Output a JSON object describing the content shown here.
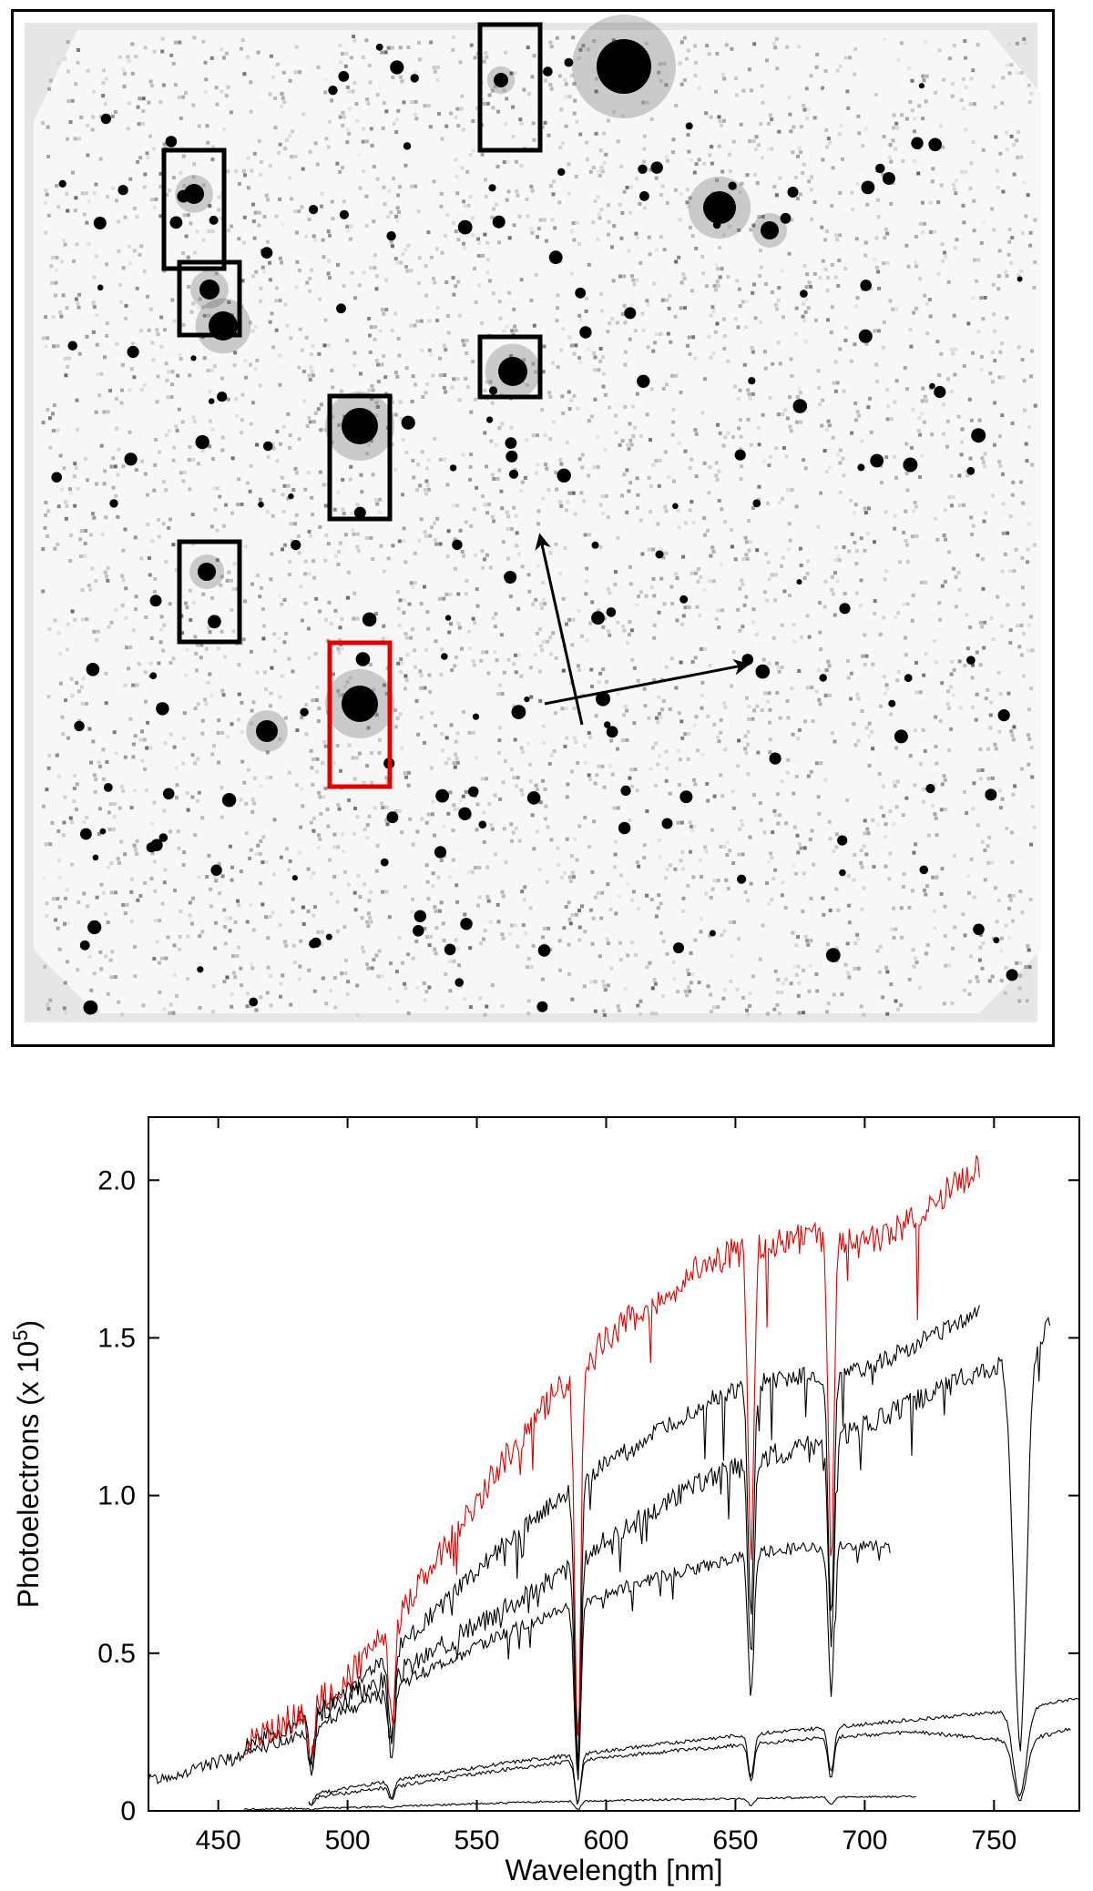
{
  "image_panel": {
    "colors": {
      "background": "#ffffff",
      "field": "#f7f7f7",
      "vignette": "#e6e6e6",
      "star": "#000000",
      "highlight_box": "#e00000",
      "box": "#000000"
    },
    "slit_boxes": [
      {
        "id": "slit-1",
        "highlight": false
      },
      {
        "id": "slit-2",
        "highlight": false
      },
      {
        "id": "slit-3",
        "highlight": false
      },
      {
        "id": "slit-4",
        "highlight": false
      },
      {
        "id": "slit-5",
        "highlight": false
      },
      {
        "id": "slit-6",
        "highlight": false
      },
      {
        "id": "slit-7",
        "highlight": true
      }
    ],
    "arrows": [
      "north-arrow",
      "east-arrow"
    ]
  },
  "chart_data": {
    "type": "line",
    "title": "",
    "xlabel": "Wavelength [nm]",
    "ylabel_prefix": "Photoelectrons (x 10",
    "ylabel_exp": "5",
    "ylabel_suffix": ")",
    "xlim": [
      423,
      783
    ],
    "ylim": [
      0,
      2.2
    ],
    "x_ticks": [
      450,
      500,
      550,
      600,
      650,
      700,
      750
    ],
    "x_tick_labels": [
      "450",
      "500",
      "550",
      "600",
      "650",
      "700",
      "750"
    ],
    "y_ticks": [
      0,
      0.5,
      1.0,
      1.5,
      2.0
    ],
    "y_tick_labels": [
      "0",
      "0.5",
      "1.0",
      "1.5",
      "2.0"
    ],
    "grid": false,
    "absorption_lines_nm": [
      486,
      517,
      589,
      656,
      687,
      760
    ],
    "series": [
      {
        "color": "#e00000",
        "noise": 0.05,
        "x": [
          460,
          480,
          500,
          520,
          540,
          560,
          580,
          600,
          620,
          640,
          660,
          680,
          700,
          720,
          740,
          745
        ],
        "y": [
          0.22,
          0.3,
          0.42,
          0.62,
          0.86,
          1.1,
          1.32,
          1.5,
          1.62,
          1.74,
          1.8,
          1.82,
          1.8,
          1.88,
          2.02,
          2.05
        ]
      },
      {
        "color": "#000000",
        "noise": 0.03,
        "x": [
          460,
          480,
          500,
          520,
          540,
          560,
          580,
          600,
          620,
          640,
          660,
          680,
          700,
          720,
          740,
          745
        ],
        "y": [
          0.2,
          0.28,
          0.38,
          0.52,
          0.68,
          0.84,
          0.98,
          1.1,
          1.2,
          1.3,
          1.36,
          1.38,
          1.4,
          1.48,
          1.57,
          1.6
        ]
      },
      {
        "color": "#000000",
        "noise": 0.035,
        "x": [
          480,
          500,
          520,
          540,
          560,
          580,
          600,
          620,
          640,
          660,
          680,
          700,
          720,
          740,
          760,
          772
        ],
        "y": [
          0.28,
          0.36,
          0.44,
          0.54,
          0.64,
          0.74,
          0.86,
          0.96,
          1.06,
          1.12,
          1.16,
          1.22,
          1.3,
          1.38,
          1.45,
          1.54
        ]
      },
      {
        "color": "#000000",
        "noise": 0.02,
        "x": [
          423,
          440,
          460,
          480,
          500,
          520,
          540,
          560,
          580,
          600,
          620,
          640,
          660,
          680,
          700,
          710
        ],
        "y": [
          0.1,
          0.13,
          0.18,
          0.24,
          0.32,
          0.4,
          0.48,
          0.56,
          0.63,
          0.69,
          0.74,
          0.78,
          0.82,
          0.84,
          0.84,
          0.83
        ]
      },
      {
        "color": "#000000",
        "noise": 0.006,
        "x": [
          485,
          520,
          560,
          600,
          640,
          680,
          720,
          760,
          783
        ],
        "y": [
          0.05,
          0.1,
          0.15,
          0.19,
          0.23,
          0.26,
          0.29,
          0.32,
          0.36
        ]
      },
      {
        "color": "#000000",
        "noise": 0.006,
        "x": [
          485,
          520,
          560,
          600,
          640,
          680,
          720,
          760,
          780
        ],
        "y": [
          0.04,
          0.08,
          0.13,
          0.17,
          0.2,
          0.23,
          0.25,
          0.22,
          0.26
        ]
      },
      {
        "color": "#000000",
        "noise": 0.003,
        "x": [
          460,
          500,
          540,
          580,
          620,
          660,
          700,
          720
        ],
        "y": [
          0.005,
          0.01,
          0.02,
          0.03,
          0.035,
          0.04,
          0.045,
          0.045
        ]
      }
    ]
  }
}
